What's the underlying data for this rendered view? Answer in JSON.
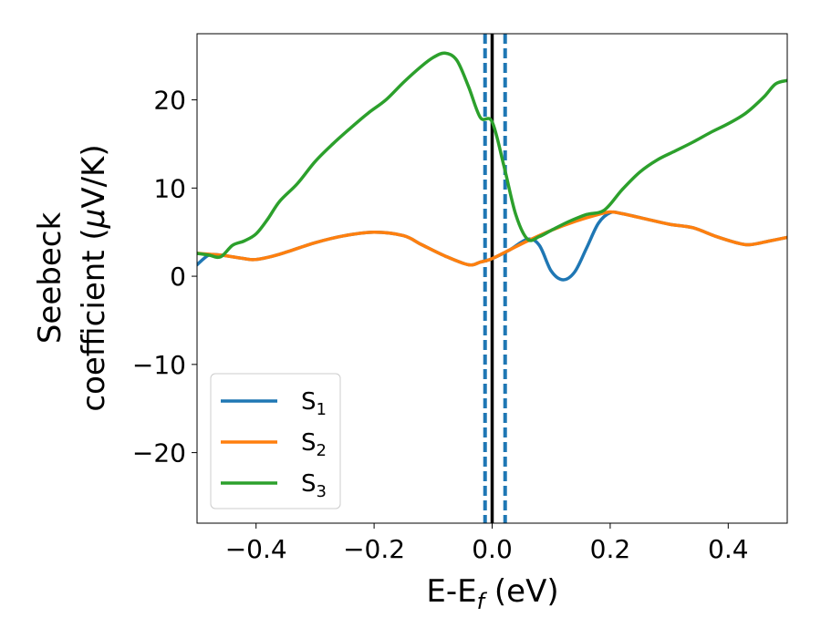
{
  "chart_data": {
    "type": "line",
    "xlabel_main": "E-E",
    "xlabel_sub": "f",
    "xlabel_unit": " (eV)",
    "ylabel_line1": "Seebeck",
    "ylabel_line2_pre": "coefficient  (",
    "ylabel_line2_mu": "μ",
    "ylabel_line2_post": "V/K)",
    "xlim": [
      -0.5,
      0.5
    ],
    "ylim": [
      -28,
      27.5
    ],
    "xticks": [
      -0.4,
      -0.2,
      0.0,
      0.2,
      0.4
    ],
    "xtick_labels": [
      "−0.4",
      "−0.2",
      "0.0",
      "0.2",
      "0.4"
    ],
    "yticks": [
      -20,
      -10,
      0,
      10,
      20
    ],
    "ytick_labels": [
      "−20",
      "−10",
      "0",
      "10",
      "20"
    ],
    "grid": false,
    "legend_position": "lower-left",
    "vlines": [
      {
        "x": 0.0,
        "style": "solid",
        "color": "#000000"
      },
      {
        "x": -0.012,
        "style": "dashed",
        "color": "#1f77b4"
      },
      {
        "x": 0.022,
        "style": "dashed",
        "color": "#1f77b4"
      }
    ],
    "series": [
      {
        "name": "S",
        "sub": "1",
        "color": "#1f77b4",
        "x": [
          -0.5,
          -0.48,
          -0.46,
          -0.44,
          -0.42,
          -0.4,
          -0.36,
          -0.3,
          -0.25,
          -0.2,
          -0.15,
          -0.12,
          -0.08,
          -0.04,
          -0.02,
          0.0,
          0.03,
          0.06,
          0.08,
          0.1,
          0.12,
          0.14,
          0.16,
          0.18,
          0.2,
          0.22,
          0.26,
          0.3,
          0.34,
          0.38,
          0.42,
          0.44,
          0.47,
          0.5
        ],
        "y": [
          1.3,
          2.4,
          2.4,
          2.2,
          2.0,
          1.9,
          2.5,
          3.8,
          4.6,
          5.0,
          4.6,
          3.6,
          2.3,
          1.3,
          1.6,
          2.0,
          3.0,
          4.2,
          3.5,
          0.6,
          -0.4,
          0.5,
          3.2,
          6.0,
          7.2,
          7.1,
          6.5,
          5.9,
          5.5,
          4.5,
          3.7,
          3.6,
          4.0,
          4.4
        ]
      },
      {
        "name": "S",
        "sub": "2",
        "color": "#ff7f0e",
        "x": [
          -0.5,
          -0.46,
          -0.44,
          -0.42,
          -0.4,
          -0.36,
          -0.3,
          -0.25,
          -0.2,
          -0.15,
          -0.12,
          -0.08,
          -0.04,
          -0.02,
          0.0,
          0.03,
          0.06,
          0.1,
          0.14,
          0.18,
          0.2,
          0.22,
          0.26,
          0.3,
          0.34,
          0.38,
          0.42,
          0.44,
          0.47,
          0.5
        ],
        "y": [
          2.6,
          2.4,
          2.2,
          2.0,
          1.9,
          2.5,
          3.8,
          4.6,
          5.0,
          4.6,
          3.6,
          2.3,
          1.3,
          1.6,
          2.0,
          3.0,
          4.0,
          5.2,
          6.2,
          7.0,
          7.3,
          7.1,
          6.5,
          5.9,
          5.5,
          4.5,
          3.7,
          3.6,
          4.0,
          4.4
        ]
      },
      {
        "name": "S",
        "sub": "3",
        "color": "#2ca02c",
        "x": [
          -0.5,
          -0.48,
          -0.46,
          -0.44,
          -0.42,
          -0.4,
          -0.38,
          -0.36,
          -0.33,
          -0.3,
          -0.27,
          -0.24,
          -0.21,
          -0.18,
          -0.15,
          -0.12,
          -0.1,
          -0.08,
          -0.06,
          -0.04,
          -0.02,
          0.0,
          0.02,
          0.04,
          0.06,
          0.08,
          0.1,
          0.13,
          0.16,
          0.19,
          0.22,
          0.25,
          0.28,
          0.31,
          0.34,
          0.37,
          0.4,
          0.43,
          0.46,
          0.48,
          0.5
        ],
        "y": [
          2.6,
          2.4,
          2.2,
          3.5,
          4.0,
          4.8,
          6.5,
          8.5,
          10.5,
          13.0,
          15.0,
          16.8,
          18.5,
          20.0,
          22.0,
          23.8,
          24.8,
          25.3,
          24.5,
          21.5,
          18.0,
          17.5,
          12.5,
          7.0,
          4.2,
          4.5,
          5.2,
          6.2,
          7.0,
          7.5,
          9.8,
          11.8,
          13.2,
          14.2,
          15.2,
          16.3,
          17.3,
          18.5,
          20.3,
          21.8,
          22.2
        ]
      }
    ]
  }
}
